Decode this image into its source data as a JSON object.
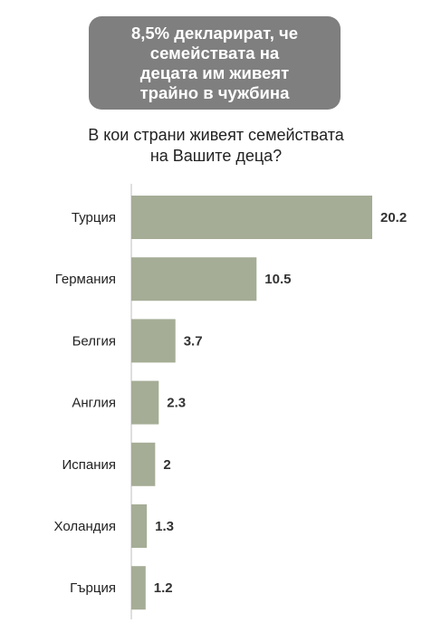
{
  "banner": {
    "text": "8,5% декларират, че\nсемействата на\nдецата им живеят\nтрайно в чужбина"
  },
  "question": {
    "text": "В кои страни живеят семействата\nна Вашите деца?"
  },
  "chart_data": {
    "type": "bar",
    "orientation": "horizontal",
    "categories": [
      "Турция",
      "Германия",
      "Белгия",
      "Англия",
      "Испания",
      "Холандия",
      "Гърция"
    ],
    "values": [
      20.2,
      10.5,
      3.7,
      2.3,
      2,
      1.3,
      1.2
    ],
    "value_labels": [
      "20.2",
      "10.5",
      "3.7",
      "2.3",
      "2",
      "1.3",
      "1.2"
    ],
    "xlim": [
      0,
      20.2
    ],
    "grid": false,
    "legend": "none",
    "colors": {
      "bar": "#a5ad96",
      "axis": "#bfbfbf"
    }
  }
}
